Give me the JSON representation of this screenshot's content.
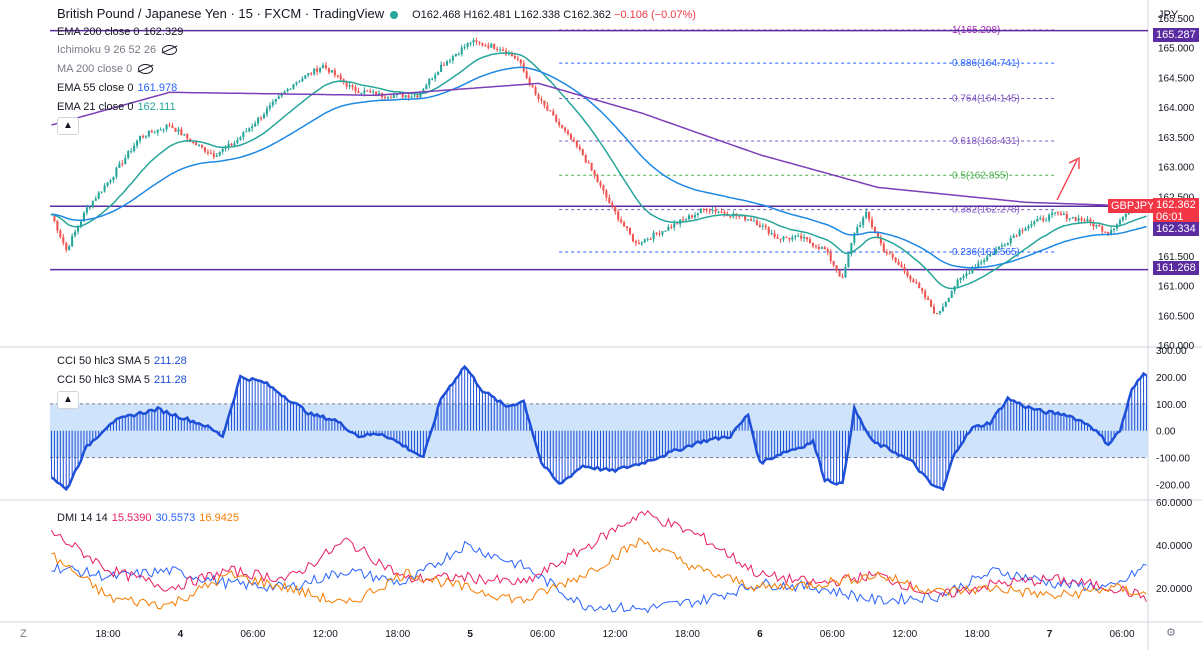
{
  "header": {
    "title": "British Pound / Japanese Yen · 15 · FXCM · TradingView",
    "ohlc": {
      "o": "O162.468",
      "h": "H162.481",
      "l": "L162.338",
      "c": "C162.362",
      "chg": "−0.106 (−0.07%)"
    }
  },
  "currency": "JPY",
  "indicators": [
    {
      "label": "EMA 200 close 0",
      "value": "162.329",
      "color": "#131722"
    },
    {
      "label": "Ichimoku 9 26 52 26",
      "value": "",
      "color": "#787b86"
    },
    {
      "label": "MA 200 close 0",
      "value": "",
      "color": "#787b86"
    },
    {
      "label": "EMA 55 close 0",
      "value": "161.978",
      "color": "#2962ff"
    },
    {
      "label": "EMA 21 close 0",
      "value": "162.111",
      "color": "#26a69a"
    }
  ],
  "colors": {
    "up": "#26a69a",
    "down": "#ef5350",
    "ema200": "#7b3fb8",
    "ema55": "#1e88e5",
    "ema21": "#26a69a",
    "hline": "#5b2ca0",
    "cci": "#1e4fd8",
    "cciband": "#cfe3fb",
    "plus_di": "#2962ff",
    "minus_di": "#e91e63",
    "adx": "#f57c00",
    "arrow": "#f23645"
  },
  "price_pane": {
    "axis_ticks": [
      "165.500",
      "165.000",
      "164.500",
      "164.000",
      "163.500",
      "163.000",
      "162.500",
      "162.000",
      "161.500",
      "161.000",
      "160.500",
      "160.000"
    ],
    "hlines": [
      {
        "value": 165.287,
        "label": "165.287"
      },
      {
        "value": 162.334,
        "label": "162.334"
      },
      {
        "value": 161.268,
        "label": "161.268"
      }
    ],
    "last_price": {
      "symbol": "GBPJPY",
      "price": "162.362",
      "countdown": "06:01"
    },
    "fib_levels": [
      {
        "ratio": "1",
        "price": "165.298",
        "label": "1(165.298)"
      },
      {
        "ratio": "0.886",
        "price": "164.741",
        "label": "0.886(164.741)"
      },
      {
        "ratio": "0.764",
        "price": "164.145",
        "label": "0.764(164.145)"
      },
      {
        "ratio": "0.618",
        "price": "163.431",
        "label": "0.618(163.431)"
      },
      {
        "ratio": "0.5",
        "price": "162.855",
        "label": "0.5(162.855)"
      },
      {
        "ratio": "0.382",
        "price": "162.278",
        "label": "0.382(162.278)"
      },
      {
        "ratio": "0.236",
        "price": "161.565",
        "label": "0.236(161.565)"
      }
    ]
  },
  "cci_pane": {
    "legend": [
      {
        "label": "CCI 50 hlc3 SMA 5",
        "value": "211.28"
      },
      {
        "label": "CCI 50 hlc3 SMA 5",
        "value": "211.28"
      }
    ],
    "axis_ticks": [
      "300.00",
      "200.00",
      "100.00",
      "0.00",
      "-100.00",
      "-200.00"
    ]
  },
  "dmi_pane": {
    "legend": {
      "label": "DMI 14 14",
      "v1": "15.5390",
      "v2": "30.5573",
      "v3": "16.9425"
    },
    "axis_ticks": [
      "60.0000",
      "40.0000",
      "20.0000"
    ]
  },
  "time_axis": [
    "18:00",
    "4",
    "06:00",
    "12:00",
    "18:00",
    "5",
    "06:00",
    "12:00",
    "18:00",
    "6",
    "06:00",
    "12:00",
    "18:00",
    "7",
    "06:00"
  ],
  "corner_labels": {
    "left": "Z",
    "right": "⚙"
  },
  "chart_data": {
    "type": "candlestick",
    "symbol": "GBPJPY",
    "timeframe": "15",
    "price_range": [
      160.0,
      165.5
    ],
    "cci_range": [
      -250,
      300
    ],
    "dmi_range": [
      5,
      60
    ],
    "anchors": [
      [
        0,
        162.2
      ],
      [
        5,
        161.6
      ],
      [
        12,
        162.3
      ],
      [
        20,
        162.8
      ],
      [
        30,
        163.5
      ],
      [
        40,
        163.7
      ],
      [
        48,
        163.4
      ],
      [
        55,
        163.2
      ],
      [
        62,
        163.4
      ],
      [
        72,
        163.9
      ],
      [
        82,
        164.4
      ],
      [
        92,
        164.7
      ],
      [
        102,
        164.3
      ],
      [
        112,
        164.2
      ],
      [
        124,
        164.2
      ],
      [
        132,
        164.7
      ],
      [
        142,
        165.1
      ],
      [
        152,
        165.0
      ],
      [
        158,
        164.8
      ],
      [
        164,
        164.2
      ],
      [
        172,
        163.7
      ],
      [
        180,
        163.2
      ],
      [
        190,
        162.3
      ],
      [
        198,
        161.7
      ],
      [
        206,
        161.9
      ],
      [
        214,
        162.1
      ],
      [
        222,
        162.3
      ],
      [
        230,
        162.2
      ],
      [
        238,
        162.1
      ],
      [
        246,
        161.8
      ],
      [
        254,
        161.8
      ],
      [
        262,
        161.6
      ],
      [
        268,
        161.1
      ],
      [
        272,
        161.9
      ],
      [
        276,
        162.2
      ],
      [
        282,
        161.6
      ],
      [
        290,
        161.2
      ],
      [
        296,
        160.8
      ],
      [
        300,
        160.5
      ],
      [
        306,
        161.0
      ],
      [
        312,
        161.3
      ],
      [
        320,
        161.6
      ],
      [
        330,
        162.0
      ],
      [
        340,
        162.2
      ],
      [
        350,
        162.1
      ],
      [
        358,
        161.9
      ],
      [
        366,
        162.3
      ],
      [
        371,
        162.36
      ]
    ],
    "ema200_points": [
      [
        0,
        163.7
      ],
      [
        40,
        164.25
      ],
      [
        110,
        164.2
      ],
      [
        165,
        164.4
      ],
      [
        200,
        163.9
      ],
      [
        240,
        163.2
      ],
      [
        280,
        162.65
      ],
      [
        330,
        162.4
      ],
      [
        371,
        162.33
      ]
    ],
    "cci_anchors": [
      [
        0,
        -170
      ],
      [
        5,
        -220
      ],
      [
        12,
        -60
      ],
      [
        20,
        30
      ],
      [
        28,
        60
      ],
      [
        36,
        80
      ],
      [
        44,
        50
      ],
      [
        52,
        20
      ],
      [
        58,
        -20
      ],
      [
        64,
        200
      ],
      [
        72,
        180
      ],
      [
        80,
        120
      ],
      [
        88,
        60
      ],
      [
        96,
        40
      ],
      [
        104,
        -20
      ],
      [
        112,
        -10
      ],
      [
        120,
        -60
      ],
      [
        126,
        -100
      ],
      [
        132,
        120
      ],
      [
        140,
        240
      ],
      [
        146,
        150
      ],
      [
        154,
        90
      ],
      [
        160,
        110
      ],
      [
        166,
        -120
      ],
      [
        172,
        -200
      ],
      [
        180,
        -130
      ],
      [
        190,
        -150
      ],
      [
        200,
        -120
      ],
      [
        210,
        -80
      ],
      [
        220,
        -40
      ],
      [
        230,
        -20
      ],
      [
        236,
        60
      ],
      [
        240,
        -120
      ],
      [
        248,
        -80
      ],
      [
        254,
        -60
      ],
      [
        258,
        -40
      ],
      [
        262,
        -180
      ],
      [
        268,
        -200
      ],
      [
        272,
        80
      ],
      [
        278,
        -40
      ],
      [
        286,
        -80
      ],
      [
        292,
        -120
      ],
      [
        298,
        -200
      ],
      [
        302,
        -220
      ],
      [
        306,
        -80
      ],
      [
        312,
        10
      ],
      [
        318,
        30
      ],
      [
        324,
        120
      ],
      [
        330,
        90
      ],
      [
        336,
        70
      ],
      [
        344,
        60
      ],
      [
        352,
        20
      ],
      [
        358,
        -50
      ],
      [
        362,
        0
      ],
      [
        366,
        150
      ],
      [
        370,
        211
      ]
    ],
    "dmi": {
      "plus_di": [
        [
          0,
          30
        ],
        [
          20,
          25
        ],
        [
          40,
          28
        ],
        [
          60,
          22
        ],
        [
          80,
          20
        ],
        [
          100,
          28
        ],
        [
          120,
          22
        ],
        [
          140,
          40
        ],
        [
          160,
          30
        ],
        [
          180,
          12
        ],
        [
          200,
          10
        ],
        [
          220,
          14
        ],
        [
          240,
          22
        ],
        [
          260,
          20
        ],
        [
          280,
          14
        ],
        [
          300,
          16
        ],
        [
          320,
          28
        ],
        [
          340,
          22
        ],
        [
          360,
          20
        ],
        [
          371,
          30.5573
        ]
      ],
      "minus_di": [
        [
          0,
          46
        ],
        [
          20,
          28
        ],
        [
          40,
          20
        ],
        [
          60,
          28
        ],
        [
          80,
          24
        ],
        [
          100,
          42
        ],
        [
          120,
          24
        ],
        [
          140,
          25
        ],
        [
          160,
          22
        ],
        [
          180,
          38
        ],
        [
          200,
          55
        ],
        [
          220,
          44
        ],
        [
          240,
          26
        ],
        [
          260,
          22
        ],
        [
          280,
          26
        ],
        [
          300,
          16
        ],
        [
          320,
          22
        ],
        [
          340,
          24
        ],
        [
          360,
          20
        ],
        [
          371,
          15.539
        ]
      ],
      "adx": [
        [
          0,
          35
        ],
        [
          20,
          15
        ],
        [
          40,
          12
        ],
        [
          60,
          26
        ],
        [
          80,
          20
        ],
        [
          100,
          12
        ],
        [
          120,
          27
        ],
        [
          140,
          20
        ],
        [
          160,
          14
        ],
        [
          180,
          26
        ],
        [
          200,
          42
        ],
        [
          220,
          28
        ],
        [
          240,
          20
        ],
        [
          260,
          22
        ],
        [
          280,
          26
        ],
        [
          300,
          18
        ],
        [
          320,
          20
        ],
        [
          340,
          16
        ],
        [
          360,
          20
        ],
        [
          371,
          16.9425
        ]
      ]
    }
  }
}
